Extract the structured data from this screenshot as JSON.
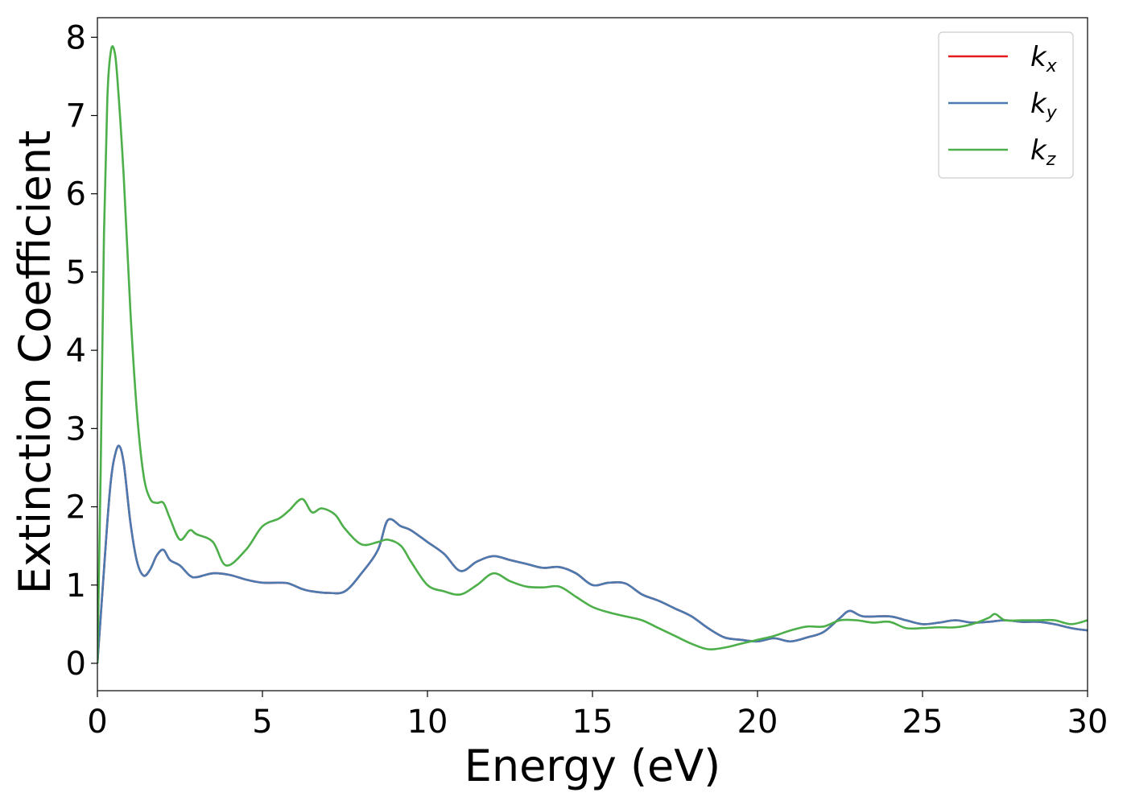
{
  "chart_data": {
    "type": "line",
    "title": "",
    "xlabel": "Energy (eV)",
    "ylabel": "Extinction Coefficient",
    "xlim": [
      0,
      30
    ],
    "ylim": [
      -0.35,
      8.25
    ],
    "xticks": [
      0,
      5,
      10,
      15,
      20,
      25,
      30
    ],
    "yticks": [
      0,
      1,
      2,
      3,
      4,
      5,
      6,
      7,
      8
    ],
    "grid": false,
    "legend_position": "top-right",
    "series": [
      {
        "name": "k",
        "subscript": "x",
        "color": "#e41a1c",
        "x": [
          0,
          0.1,
          0.2,
          0.3,
          0.4,
          0.5,
          0.65,
          0.8,
          1.0,
          1.2,
          1.4,
          1.6,
          1.8,
          2.0,
          2.2,
          2.5,
          2.8,
          3.0,
          3.5,
          4.0,
          4.5,
          5.0,
          5.5,
          5.8,
          6.2,
          6.5,
          7.0,
          7.5,
          8.0,
          8.5,
          8.8,
          9.2,
          9.5,
          10.0,
          10.5,
          11.0,
          11.5,
          12.0,
          12.5,
          13.0,
          13.5,
          14.0,
          14.5,
          15.0,
          15.5,
          16.0,
          16.5,
          17.0,
          17.5,
          18.0,
          18.5,
          19.0,
          19.5,
          20.0,
          20.5,
          21.0,
          21.5,
          22.0,
          22.5,
          22.8,
          23.2,
          24.0,
          24.5,
          25.0,
          25.5,
          26.0,
          26.5,
          27.0,
          27.5,
          28.0,
          28.5,
          29.0,
          29.5,
          30.0
        ],
        "y": [
          0.0,
          0.6,
          1.2,
          1.8,
          2.3,
          2.6,
          2.78,
          2.55,
          1.8,
          1.3,
          1.12,
          1.2,
          1.38,
          1.45,
          1.32,
          1.25,
          1.12,
          1.1,
          1.15,
          1.13,
          1.07,
          1.03,
          1.03,
          1.02,
          0.95,
          0.92,
          0.9,
          0.92,
          1.15,
          1.45,
          1.83,
          1.75,
          1.7,
          1.55,
          1.4,
          1.18,
          1.3,
          1.37,
          1.32,
          1.27,
          1.22,
          1.23,
          1.15,
          1.0,
          1.03,
          1.02,
          0.88,
          0.8,
          0.7,
          0.6,
          0.45,
          0.33,
          0.3,
          0.28,
          0.32,
          0.28,
          0.33,
          0.4,
          0.58,
          0.67,
          0.6,
          0.6,
          0.55,
          0.5,
          0.52,
          0.55,
          0.52,
          0.53,
          0.55,
          0.53,
          0.53,
          0.5,
          0.45,
          0.42
        ]
      },
      {
        "name": "k",
        "subscript": "y",
        "color": "#4a7ab0",
        "x": [
          0,
          0.1,
          0.2,
          0.3,
          0.4,
          0.5,
          0.65,
          0.8,
          1.0,
          1.2,
          1.4,
          1.6,
          1.8,
          2.0,
          2.2,
          2.5,
          2.8,
          3.0,
          3.5,
          4.0,
          4.5,
          5.0,
          5.5,
          5.8,
          6.2,
          6.5,
          7.0,
          7.5,
          8.0,
          8.5,
          8.8,
          9.2,
          9.5,
          10.0,
          10.5,
          11.0,
          11.5,
          12.0,
          12.5,
          13.0,
          13.5,
          14.0,
          14.5,
          15.0,
          15.5,
          16.0,
          16.5,
          17.0,
          17.5,
          18.0,
          18.5,
          19.0,
          19.5,
          20.0,
          20.5,
          21.0,
          21.5,
          22.0,
          22.5,
          22.8,
          23.2,
          24.0,
          24.5,
          25.0,
          25.5,
          26.0,
          26.5,
          27.0,
          27.5,
          28.0,
          28.5,
          29.0,
          29.5,
          30.0
        ],
        "y": [
          0.0,
          0.6,
          1.2,
          1.8,
          2.3,
          2.6,
          2.78,
          2.55,
          1.8,
          1.3,
          1.12,
          1.2,
          1.38,
          1.45,
          1.32,
          1.25,
          1.12,
          1.1,
          1.15,
          1.13,
          1.07,
          1.03,
          1.03,
          1.02,
          0.95,
          0.92,
          0.9,
          0.92,
          1.15,
          1.45,
          1.83,
          1.75,
          1.7,
          1.55,
          1.4,
          1.18,
          1.3,
          1.37,
          1.32,
          1.27,
          1.22,
          1.23,
          1.15,
          1.0,
          1.03,
          1.02,
          0.88,
          0.8,
          0.7,
          0.6,
          0.45,
          0.33,
          0.3,
          0.28,
          0.32,
          0.28,
          0.33,
          0.4,
          0.58,
          0.67,
          0.6,
          0.6,
          0.55,
          0.5,
          0.52,
          0.55,
          0.52,
          0.53,
          0.55,
          0.53,
          0.53,
          0.5,
          0.45,
          0.42
        ]
      },
      {
        "name": "k",
        "subscript": "z",
        "color": "#4daf4a",
        "x": [
          0,
          0.1,
          0.2,
          0.3,
          0.4,
          0.5,
          0.6,
          0.8,
          1.0,
          1.2,
          1.4,
          1.6,
          1.8,
          2.0,
          2.2,
          2.5,
          2.8,
          3.0,
          3.5,
          3.9,
          4.5,
          5.0,
          5.5,
          5.8,
          6.2,
          6.5,
          6.8,
          7.2,
          7.5,
          8.0,
          8.5,
          8.8,
          9.2,
          9.5,
          10.0,
          10.5,
          11.0,
          11.5,
          12.0,
          12.5,
          13.0,
          13.5,
          14.0,
          14.5,
          15.0,
          15.5,
          16.0,
          16.5,
          17.0,
          17.5,
          18.0,
          18.5,
          19.0,
          19.5,
          20.0,
          20.5,
          21.0,
          21.5,
          22.0,
          22.5,
          23.0,
          23.5,
          24.0,
          24.5,
          25.0,
          25.5,
          26.0,
          26.5,
          27.0,
          27.2,
          27.5,
          28.0,
          28.5,
          29.0,
          29.5,
          30.0
        ],
        "y": [
          0.0,
          2.5,
          5.5,
          7.2,
          7.8,
          7.85,
          7.5,
          6.2,
          4.5,
          3.2,
          2.4,
          2.1,
          2.05,
          2.05,
          1.85,
          1.58,
          1.7,
          1.65,
          1.55,
          1.25,
          1.45,
          1.75,
          1.85,
          1.95,
          2.1,
          1.93,
          1.98,
          1.9,
          1.72,
          1.52,
          1.55,
          1.58,
          1.5,
          1.3,
          1.0,
          0.92,
          0.88,
          1.0,
          1.15,
          1.05,
          0.98,
          0.97,
          0.98,
          0.85,
          0.72,
          0.65,
          0.6,
          0.55,
          0.45,
          0.35,
          0.25,
          0.18,
          0.2,
          0.25,
          0.3,
          0.35,
          0.42,
          0.47,
          0.47,
          0.55,
          0.55,
          0.52,
          0.53,
          0.45,
          0.45,
          0.46,
          0.46,
          0.5,
          0.58,
          0.63,
          0.55,
          0.55,
          0.55,
          0.55,
          0.5,
          0.55
        ]
      }
    ]
  }
}
